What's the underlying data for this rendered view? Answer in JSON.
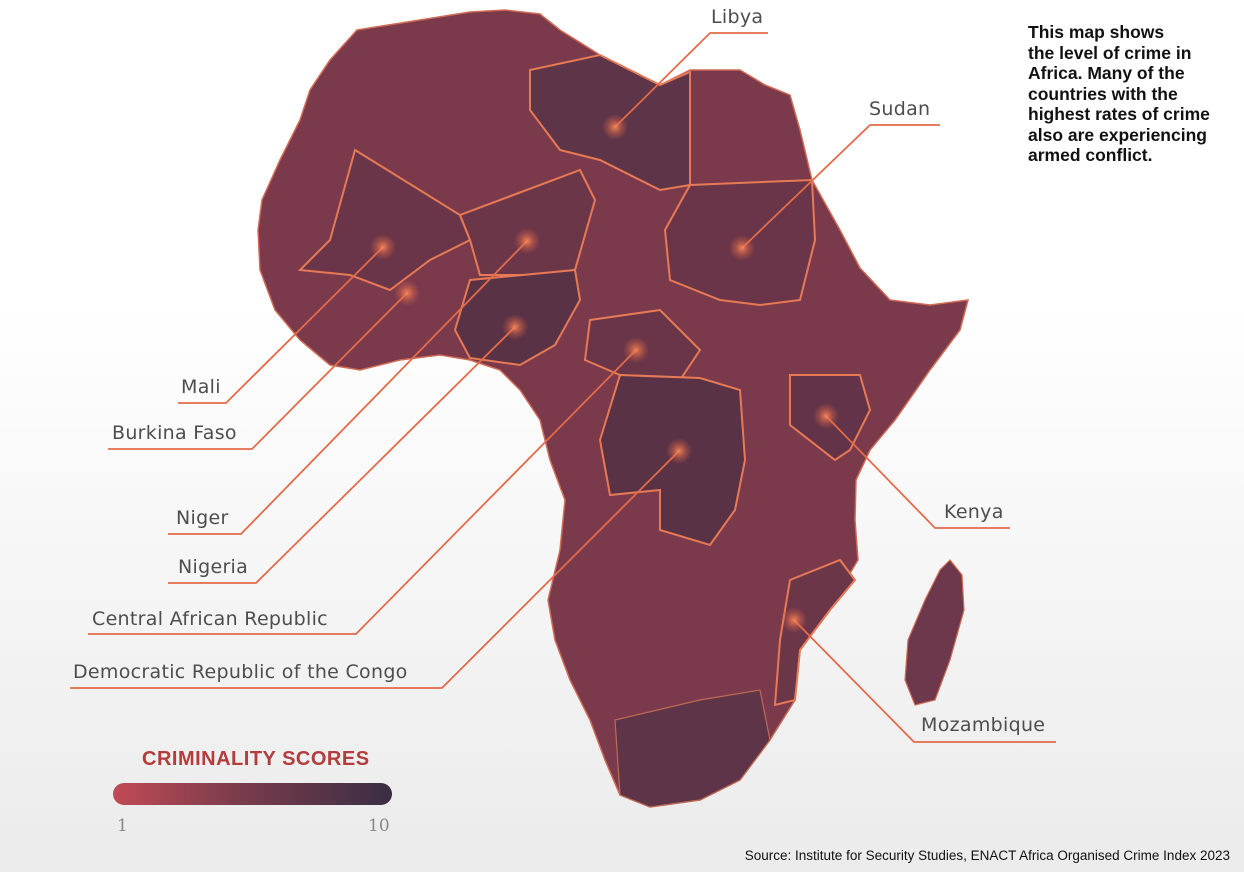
{
  "note": {
    "lines": [
      "This map shows",
      "the level of crime in",
      "Africa. Many of the",
      "countries with the",
      "highest rates of crime",
      "also are experiencing",
      "armed conflict."
    ]
  },
  "callouts": {
    "libya": "Libya",
    "sudan": "Sudan",
    "mali": "Mali",
    "burkina_faso": "Burkina Faso",
    "niger": "Niger",
    "nigeria": "Nigeria",
    "car": "Central African Republic",
    "drc": "Democratic Republic of the Congo",
    "kenya": "Kenya",
    "mozambique": "Mozambique"
  },
  "legend": {
    "title": "CRIMINALITY SCORES",
    "min": "1",
    "max": "10",
    "color_low": "#c04a55",
    "color_high": "#3a2e44"
  },
  "source": "Source: Institute for Security Studies, ENACT Africa Organised Crime Index 2023",
  "colors": {
    "map_fill": "#7a3a4c",
    "highlight_fill": "#5e3448",
    "border_highlight": "#e77a55",
    "callout_line": "#e36b4a"
  }
}
